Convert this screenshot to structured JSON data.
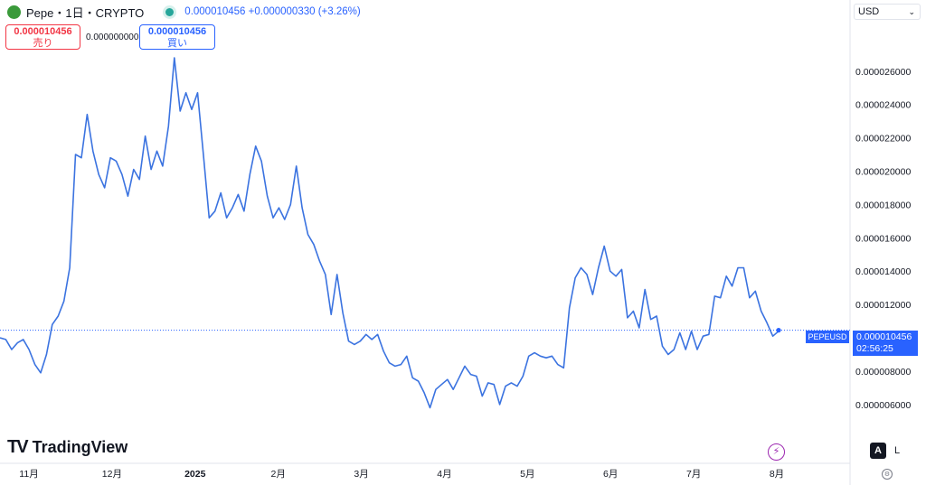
{
  "header": {
    "symbol": "Pepe・1日・CRYPTO",
    "quote": "0.000010456 +0.000000330 (+3.26%)"
  },
  "trade": {
    "sell_price": "0.000010456",
    "sell_label": "売り",
    "spread": "0.000000000",
    "buy_price": "0.000010456",
    "buy_label": "買い"
  },
  "currency": {
    "value": "USD"
  },
  "ticker_tag": "PEPEUSD",
  "last_price": {
    "value": "0.000010456",
    "countdown": "02:56:25"
  },
  "brand": {
    "name": "TradingView",
    "mark": "TV"
  },
  "scale_buttons": {
    "auto": "A",
    "log": "L"
  },
  "colors": {
    "line": "#3b73e0",
    "accent": "#2962ff",
    "sell": "#f23645",
    "live": "#26a69a"
  },
  "icons": [
    "tradingview-logo-icon",
    "lightning-icon",
    "settings-icon",
    "chevron-down-icon"
  ],
  "chart_data": {
    "type": "line",
    "series": [
      {
        "values": [
          1e-05,
          9.9e-06,
          9.3e-06,
          9.7e-06,
          9.9e-06,
          9.3e-06,
          8.4e-06,
          7.9e-06,
          9e-06,
          1.08e-05,
          1.13e-05,
          1.22e-05,
          1.42e-05,
          2.1e-05,
          2.08e-05,
          2.34e-05,
          2.12e-05,
          1.98e-05,
          1.9e-05,
          2.08e-05,
          2.06e-05,
          1.98e-05,
          1.85e-05,
          2.01e-05,
          1.95e-05,
          2.21e-05,
          2.01e-05,
          2.12e-05,
          2.03e-05,
          2.27e-05,
          2.68e-05,
          2.36e-05,
          2.47e-05,
          2.37e-05,
          2.47e-05,
          2.1e-05,
          1.72e-05,
          1.76e-05,
          1.87e-05,
          1.72e-05,
          1.78e-05,
          1.86e-05,
          1.76e-05,
          1.98e-05,
          2.15e-05,
          2.06e-05,
          1.85e-05,
          1.72e-05,
          1.78e-05,
          1.71e-05,
          1.8e-05,
          2.03e-05,
          1.78e-05,
          1.62e-05,
          1.56e-05,
          1.46e-05,
          1.38e-05,
          1.14e-05,
          1.38e-05,
          1.15e-05,
          9.8e-06,
          9.6e-06,
          9.8e-06,
          1.02e-05,
          9.9e-06,
          1.02e-05,
          9.2e-06,
          8.5e-06,
          8.3e-06,
          8.4e-06,
          8.9e-06,
          7.6e-06,
          7.4e-06,
          6.7e-06,
          5.8e-06,
          6.9e-06,
          7.2e-06,
          7.5e-06,
          6.9e-06,
          7.6e-06,
          8.3e-06,
          7.8e-06,
          7.7e-06,
          6.5e-06,
          7.3e-06,
          7.2e-06,
          6e-06,
          7.1e-06,
          7.3e-06,
          7.1e-06,
          7.7e-06,
          8.9e-06,
          9.1e-06,
          8.9e-06,
          8.8e-06,
          8.9e-06,
          8.4e-06,
          8.2e-06,
          1.18e-05,
          1.36e-05,
          1.42e-05,
          1.38e-05,
          1.26e-05,
          1.42e-05,
          1.55e-05,
          1.4e-05,
          1.37e-05,
          1.41e-05,
          1.12e-05,
          1.16e-05,
          1.06e-05,
          1.29e-05,
          1.11e-05,
          1.13e-05,
          9.5e-06,
          9e-06,
          9.3e-06,
          1.03e-05,
          9.3e-06,
          1.04e-05,
          9.3e-06,
          1.01e-05,
          1.02e-05,
          1.25e-05,
          1.24e-05,
          1.37e-05,
          1.31e-05,
          1.42e-05,
          1.42e-05,
          1.24e-05,
          1.28e-05,
          1.16e-05,
          1.09e-05,
          1.01e-05,
          1.04e-05
        ]
      }
    ],
    "x_ticks": [
      "11月",
      "12月",
      "2025",
      "2月",
      "3月",
      "4月",
      "5月",
      "6月",
      "7月",
      "8月"
    ],
    "y_ticks": [
      "0.000006000",
      "0.000008000",
      "0.000010000",
      "0.000012000",
      "0.000014000",
      "0.000016000",
      "0.000018000",
      "0.000020000",
      "0.000022000",
      "0.000024000",
      "0.000026000"
    ],
    "ylim": [
      4.8e-06,
      2.81e-05
    ],
    "last_value": 1.0456e-05,
    "grid": false
  }
}
